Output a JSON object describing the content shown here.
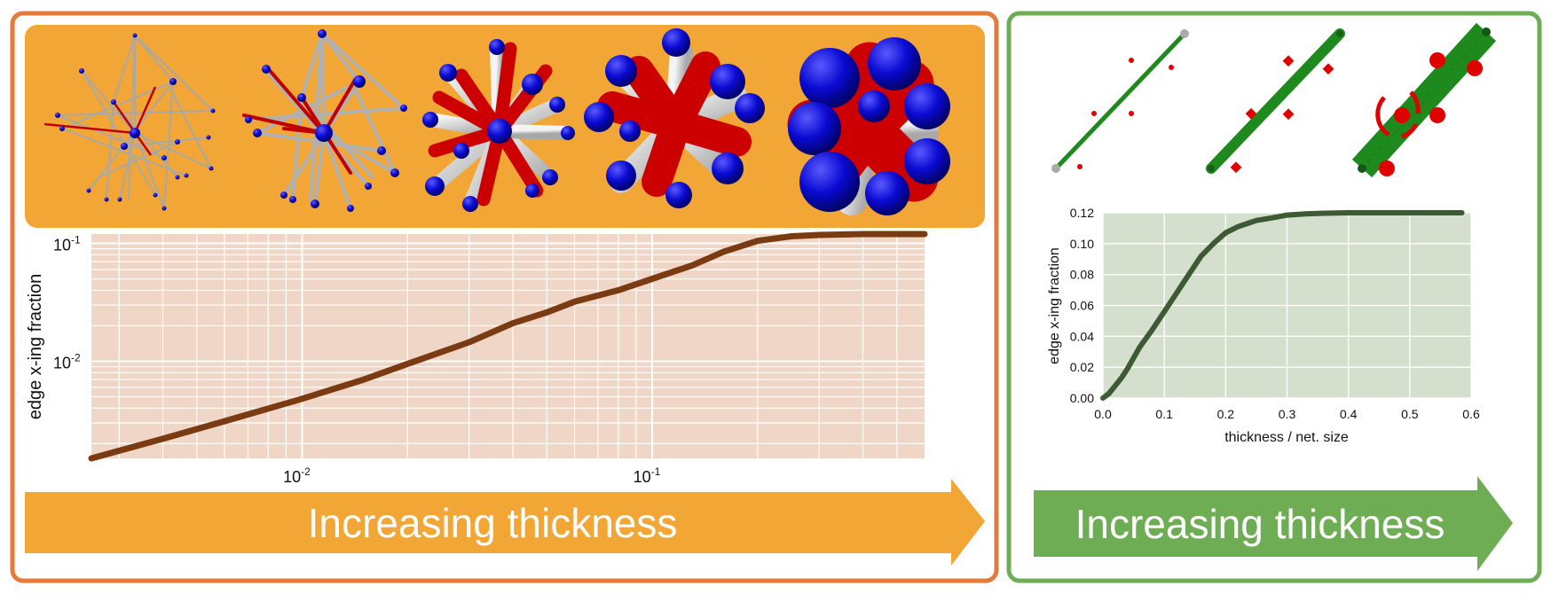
{
  "left_panel": {
    "arrow_label": "Increasing thickness",
    "colors": {
      "frame": "#e47b3c",
      "banner": "#f2a636",
      "plot_bg": "#f0d6c6",
      "line": "#7b3b12",
      "grid": "#ffffff"
    }
  },
  "right_panel": {
    "arrow_label": "Increasing thickness",
    "colors": {
      "frame": "#6fad55",
      "arrow": "#6fad55",
      "plot_bg": "#d4e0cd",
      "line": "#3d5a34",
      "rod": "#1e8a1e",
      "node": "#e00000"
    }
  },
  "chart_data": [
    {
      "type": "line",
      "xscale": "log",
      "yscale": "log",
      "xlim": [
        0.0025,
        0.6
      ],
      "ylim": [
        0.0015,
        0.12
      ],
      "xticks": [
        0.01,
        0.1
      ],
      "yticks": [
        0.01,
        0.1
      ],
      "xtick_labels": [
        {
          "base": "10",
          "exp": "-2"
        },
        {
          "base": "10",
          "exp": "-1"
        }
      ],
      "ytick_labels": [
        {
          "base": "10",
          "exp": "-2"
        },
        {
          "base": "10",
          "exp": "-1"
        }
      ],
      "xlabel": "",
      "ylabel": "edge x-ing fraction",
      "grid": true,
      "series": [
        {
          "x": [
            0.0025,
            0.004,
            0.006,
            0.01,
            0.015,
            0.02,
            0.03,
            0.04,
            0.05,
            0.06,
            0.08,
            0.1,
            0.13,
            0.16,
            0.2,
            0.25,
            0.3,
            0.4,
            0.5,
            0.6
          ],
          "y": [
            0.0015,
            0.0022,
            0.0031,
            0.0048,
            0.007,
            0.0095,
            0.0145,
            0.021,
            0.026,
            0.032,
            0.04,
            0.05,
            0.065,
            0.085,
            0.105,
            0.115,
            0.118,
            0.12,
            0.12,
            0.12
          ]
        }
      ]
    },
    {
      "type": "line",
      "xlim": [
        0.0,
        0.6
      ],
      "ylim": [
        0.0,
        0.12
      ],
      "xticks": [
        0.0,
        0.1,
        0.2,
        0.3,
        0.4,
        0.5,
        0.6
      ],
      "xtick_labels": [
        "0.0",
        "0.1",
        "0.2",
        "0.3",
        "0.4",
        "0.5",
        "0.6"
      ],
      "yticks": [
        0.0,
        0.02,
        0.04,
        0.06,
        0.08,
        0.1,
        0.12
      ],
      "ytick_labels": [
        "0.00",
        "0.02",
        "0.04",
        "0.06",
        "0.08",
        "0.10",
        "0.12"
      ],
      "xlabel": "thickness / net. size",
      "ylabel": "edge x-ing fraction",
      "grid": true,
      "series": [
        {
          "x": [
            0.0,
            0.01,
            0.02,
            0.03,
            0.04,
            0.05,
            0.06,
            0.08,
            0.1,
            0.12,
            0.14,
            0.16,
            0.18,
            0.2,
            0.22,
            0.25,
            0.28,
            0.3,
            0.33,
            0.36,
            0.4,
            0.45,
            0.5,
            0.55,
            0.585
          ],
          "y": [
            0.0,
            0.003,
            0.008,
            0.013,
            0.019,
            0.026,
            0.033,
            0.044,
            0.056,
            0.068,
            0.08,
            0.092,
            0.1,
            0.107,
            0.111,
            0.115,
            0.117,
            0.1185,
            0.1193,
            0.1197,
            0.12,
            0.12,
            0.12,
            0.12,
            0.12
          ]
        }
      ]
    }
  ]
}
